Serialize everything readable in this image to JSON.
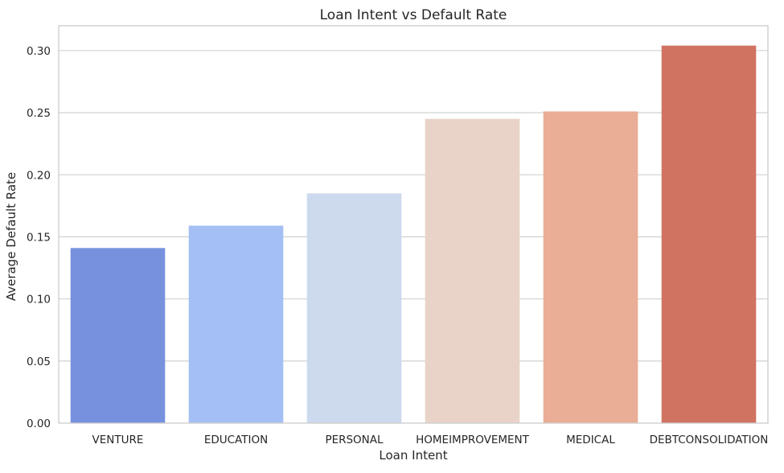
{
  "chart_data": {
    "type": "bar",
    "title": "Loan Intent vs Default Rate",
    "xlabel": "Loan Intent",
    "ylabel": "Average Default Rate",
    "categories": [
      "VENTURE",
      "EDUCATION",
      "PERSONAL",
      "HOMEIMPROVEMENT",
      "MEDICAL",
      "DEBTCONSOLIDATION"
    ],
    "values": [
      0.141,
      0.159,
      0.185,
      0.245,
      0.251,
      0.304
    ],
    "colors": [
      "#7891de",
      "#a4bff4",
      "#cdd9ec",
      "#e9d3c8",
      "#eaad95",
      "#d07461"
    ],
    "ylim": [
      0,
      0.32
    ],
    "yticks": [
      "0.00",
      "0.05",
      "0.10",
      "0.15",
      "0.20",
      "0.25",
      "0.30"
    ],
    "ytick_values": [
      0,
      0.05,
      0.1,
      0.15,
      0.2,
      0.25,
      0.3
    ],
    "grid": "horizontal",
    "style": {
      "grid_color": "#cccccc",
      "spine_color": "#cccccc",
      "text_color": "#262626"
    }
  }
}
